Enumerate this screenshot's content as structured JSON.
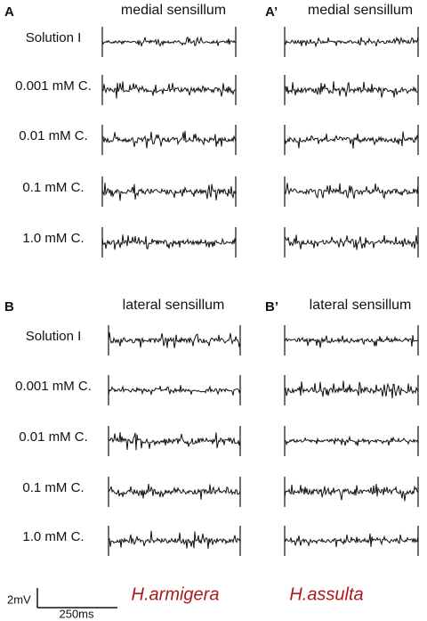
{
  "sections": [
    {
      "rows": [
        "Solution I",
        "0.001 mM C.",
        "0.01 mM C.",
        "0.1 mM C.",
        "1.0 mM C."
      ],
      "panels": [
        {
          "label": "A",
          "title": "medial sensillum"
        },
        {
          "label": "A’",
          "title": "medial sensillum"
        }
      ]
    },
    {
      "rows": [
        "Solution I",
        "0.001 mM C.",
        "0.01 mM C.",
        "0.1 mM C.",
        "1.0 mM C."
      ],
      "panels": [
        {
          "label": "B",
          "title": "lateral sensillum"
        },
        {
          "label": "B’",
          "title": "lateral sensillum"
        }
      ]
    }
  ],
  "scale_bar": {
    "y_label": "2mV",
    "x_label": "250ms"
  },
  "species": [
    "H.armigera",
    "H.assulta"
  ]
}
